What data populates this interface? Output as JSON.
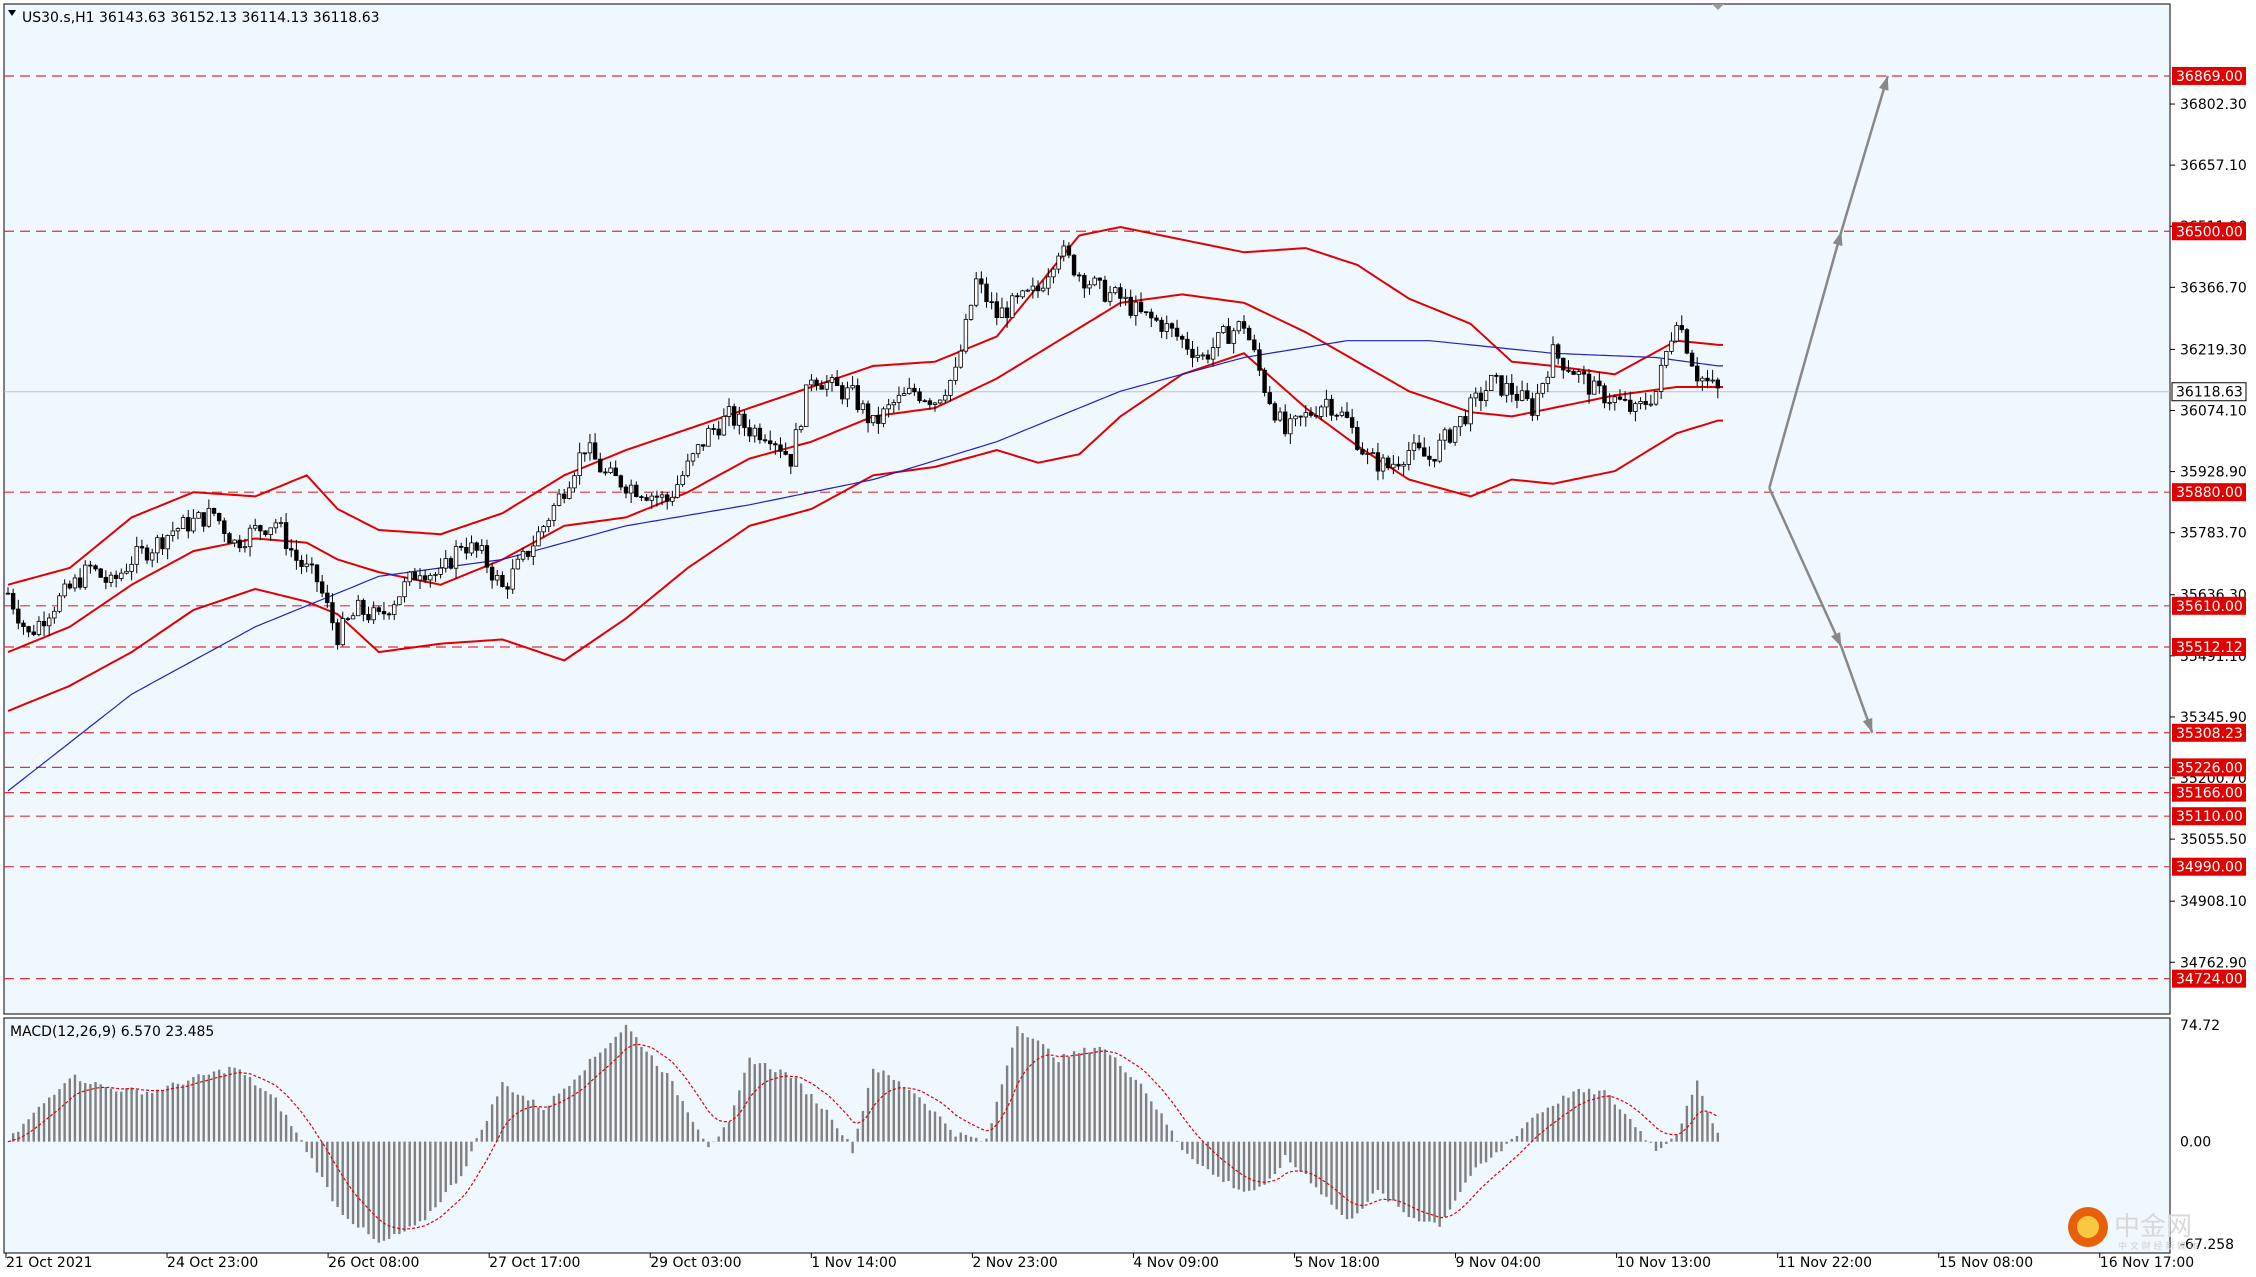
{
  "header": {
    "symbol_line": "US30.s,H1  36143.63 36152.13 36114.13 36118.63"
  },
  "macd_header": "MACD(12,26,9) 6.570 23.485",
  "watermark": {
    "brand": "中金网",
    "sub": "中 文 财 经 新 媒 体"
  },
  "colors": {
    "background": "#f0f8ff",
    "band": "#e00000",
    "ma_blue": "#2020c0",
    "level_line": "#e03030",
    "tag_red": "#e00000",
    "arrow": "#888888",
    "macd_hist": "#808080",
    "macd_signal": "#e00000"
  },
  "chart_data": {
    "type": "candlestick",
    "title": "US30.s,H1",
    "ohlc_last": {
      "open": 36143.63,
      "high": 36152.13,
      "low": 36114.13,
      "close": 36118.63
    },
    "current_price": "36118.63",
    "ylim": [
      34640,
      37040
    ],
    "y_ticks": [
      "36802.30",
      "36657.10",
      "36511.90",
      "36366.70",
      "36219.30",
      "36074.10",
      "35928.90",
      "35783.70",
      "35636.30",
      "35491.10",
      "35345.90",
      "35200.70",
      "35055.50",
      "34908.10",
      "34762.90"
    ],
    "x_ticks": [
      "21 Oct 2021",
      "24 Oct 23:00",
      "26 Oct 08:00",
      "27 Oct 17:00",
      "29 Oct 03:00",
      "1 Nov 14:00",
      "2 Nov 23:00",
      "4 Nov 09:00",
      "5 Nov 18:00",
      "9 Nov 04:00",
      "10 Nov 13:00",
      "11 Nov 22:00",
      "15 Nov 08:00",
      "16 Nov 17:00"
    ],
    "levels": [
      {
        "label": "36869.00",
        "value": 36869.0
      },
      {
        "label": "36500.00",
        "value": 36500.0
      },
      {
        "label": "35880.00",
        "value": 35880.0
      },
      {
        "label": "35610.00",
        "value": 35610.0
      },
      {
        "label": "35512.12",
        "value": 35512.12
      },
      {
        "label": "35308.23",
        "value": 35308.23
      },
      {
        "label": "35226.00",
        "value": 35226.0
      },
      {
        "label": "35166.00",
        "value": 35166.0
      },
      {
        "label": "35110.00",
        "value": 35110.0
      },
      {
        "label": "34990.00",
        "value": 34990.0
      },
      {
        "label": "34724.00",
        "value": 34724.0
      }
    ],
    "close_path": [
      [
        0,
        35640
      ],
      [
        4,
        35540
      ],
      [
        8,
        35600
      ],
      [
        12,
        35650
      ],
      [
        16,
        35700
      ],
      [
        20,
        35660
      ],
      [
        24,
        35720
      ],
      [
        28,
        35750
      ],
      [
        32,
        35790
      ],
      [
        36,
        35810
      ],
      [
        40,
        35830
      ],
      [
        44,
        35760
      ],
      [
        48,
        35790
      ],
      [
        52,
        35810
      ],
      [
        56,
        35720
      ],
      [
        60,
        35670
      ],
      [
        64,
        35540
      ],
      [
        68,
        35600
      ],
      [
        72,
        35580
      ],
      [
        76,
        35640
      ],
      [
        80,
        35700
      ],
      [
        84,
        35680
      ],
      [
        88,
        35760
      ],
      [
        92,
        35730
      ],
      [
        96,
        35650
      ],
      [
        100,
        35720
      ],
      [
        104,
        35800
      ],
      [
        108,
        35890
      ],
      [
        112,
        35990
      ],
      [
        116,
        35920
      ],
      [
        120,
        35900
      ],
      [
        124,
        35880
      ],
      [
        128,
        35860
      ],
      [
        132,
        35940
      ],
      [
        136,
        36020
      ],
      [
        140,
        36060
      ],
      [
        144,
        36030
      ],
      [
        148,
        36020
      ],
      [
        152,
        35960
      ],
      [
        156,
        36160
      ],
      [
        160,
        36130
      ],
      [
        164,
        36110
      ],
      [
        168,
        36040
      ],
      [
        172,
        36090
      ],
      [
        176,
        36120
      ],
      [
        180,
        36100
      ],
      [
        184,
        36160
      ],
      [
        188,
        36380
      ],
      [
        192,
        36300
      ],
      [
        196,
        36330
      ],
      [
        200,
        36360
      ],
      [
        204,
        36460
      ],
      [
        208,
        36400
      ],
      [
        212,
        36360
      ],
      [
        216,
        36340
      ],
      [
        220,
        36300
      ],
      [
        224,
        36280
      ],
      [
        228,
        36240
      ],
      [
        232,
        36200
      ],
      [
        236,
        36250
      ],
      [
        240,
        36280
      ],
      [
        244,
        36130
      ],
      [
        248,
        36020
      ],
      [
        252,
        36060
      ],
      [
        256,
        36100
      ],
      [
        260,
        36050
      ],
      [
        264,
        35960
      ],
      [
        268,
        35940
      ],
      [
        272,
        35980
      ],
      [
        276,
        35960
      ],
      [
        280,
        36020
      ],
      [
        284,
        36080
      ],
      [
        288,
        36140
      ],
      [
        292,
        36120
      ],
      [
        296,
        36080
      ],
      [
        300,
        36210
      ],
      [
        304,
        36170
      ],
      [
        308,
        36120
      ],
      [
        312,
        36100
      ],
      [
        316,
        36070
      ],
      [
        320,
        36120
      ],
      [
        324,
        36300
      ],
      [
        328,
        36160
      ],
      [
        332,
        36120
      ]
    ],
    "upper_band": [
      [
        0,
        35660
      ],
      [
        12,
        35700
      ],
      [
        24,
        35820
      ],
      [
        36,
        35880
      ],
      [
        48,
        35870
      ],
      [
        58,
        35920
      ],
      [
        64,
        35840
      ],
      [
        72,
        35790
      ],
      [
        84,
        35780
      ],
      [
        96,
        35830
      ],
      [
        108,
        35920
      ],
      [
        120,
        35980
      ],
      [
        132,
        36030
      ],
      [
        144,
        36080
      ],
      [
        156,
        36130
      ],
      [
        168,
        36180
      ],
      [
        180,
        36190
      ],
      [
        192,
        36250
      ],
      [
        200,
        36370
      ],
      [
        208,
        36490
      ],
      [
        216,
        36510
      ],
      [
        228,
        36480
      ],
      [
        240,
        36450
      ],
      [
        252,
        36460
      ],
      [
        262,
        36420
      ],
      [
        272,
        36340
      ],
      [
        284,
        36280
      ],
      [
        292,
        36190
      ],
      [
        300,
        36180
      ],
      [
        312,
        36160
      ],
      [
        324,
        36240
      ],
      [
        332,
        36230
      ]
    ],
    "middle_band": [
      [
        0,
        35500
      ],
      [
        12,
        35560
      ],
      [
        24,
        35660
      ],
      [
        36,
        35740
      ],
      [
        48,
        35770
      ],
      [
        58,
        35760
      ],
      [
        64,
        35720
      ],
      [
        72,
        35690
      ],
      [
        84,
        35660
      ],
      [
        96,
        35720
      ],
      [
        108,
        35800
      ],
      [
        120,
        35820
      ],
      [
        132,
        35880
      ],
      [
        144,
        35960
      ],
      [
        156,
        36000
      ],
      [
        168,
        36060
      ],
      [
        180,
        36080
      ],
      [
        192,
        36150
      ],
      [
        200,
        36210
      ],
      [
        208,
        36270
      ],
      [
        216,
        36330
      ],
      [
        228,
        36350
      ],
      [
        240,
        36330
      ],
      [
        252,
        36260
      ],
      [
        262,
        36190
      ],
      [
        272,
        36120
      ],
      [
        284,
        36070
      ],
      [
        292,
        36060
      ],
      [
        300,
        36080
      ],
      [
        312,
        36110
      ],
      [
        324,
        36130
      ],
      [
        332,
        36130
      ]
    ],
    "lower_band": [
      [
        0,
        35360
      ],
      [
        12,
        35420
      ],
      [
        24,
        35500
      ],
      [
        36,
        35600
      ],
      [
        48,
        35650
      ],
      [
        58,
        35620
      ],
      [
        64,
        35590
      ],
      [
        72,
        35500
      ],
      [
        84,
        35520
      ],
      [
        96,
        35530
      ],
      [
        108,
        35480
      ],
      [
        120,
        35580
      ],
      [
        132,
        35700
      ],
      [
        144,
        35800
      ],
      [
        156,
        35840
      ],
      [
        168,
        35920
      ],
      [
        180,
        35940
      ],
      [
        192,
        35980
      ],
      [
        200,
        35950
      ],
      [
        208,
        35970
      ],
      [
        216,
        36060
      ],
      [
        228,
        36160
      ],
      [
        240,
        36210
      ],
      [
        252,
        36080
      ],
      [
        262,
        35990
      ],
      [
        272,
        35910
      ],
      [
        284,
        35870
      ],
      [
        292,
        35910
      ],
      [
        300,
        35900
      ],
      [
        312,
        35930
      ],
      [
        324,
        36020
      ],
      [
        332,
        36050
      ]
    ],
    "ma_blue": [
      [
        0,
        35170
      ],
      [
        24,
        35400
      ],
      [
        48,
        35560
      ],
      [
        72,
        35680
      ],
      [
        96,
        35720
      ],
      [
        120,
        35800
      ],
      [
        144,
        35850
      ],
      [
        168,
        35910
      ],
      [
        192,
        36000
      ],
      [
        216,
        36120
      ],
      [
        240,
        36200
      ],
      [
        260,
        36240
      ],
      [
        276,
        36240
      ],
      [
        300,
        36210
      ],
      [
        320,
        36200
      ],
      [
        332,
        36180
      ]
    ],
    "scenario_arrows": [
      {
        "from": [
          342,
          35890
        ],
        "to": [
          356,
          36500
        ]
      },
      {
        "from": [
          356,
          36500
        ],
        "to": [
          365,
          36869
        ]
      },
      {
        "from": [
          342,
          35890
        ],
        "to": [
          356,
          35512.12
        ]
      },
      {
        "from": [
          356,
          35512.12
        ],
        "to": [
          362,
          35308.23
        ]
      }
    ],
    "macd": {
      "ylim": [
        -67.258,
        74.72
      ],
      "y_ticks": [
        "74.72",
        "0.00",
        "-67.258"
      ],
      "hist_path": [
        [
          0,
          0
        ],
        [
          6,
          20
        ],
        [
          12,
          40
        ],
        [
          20,
          32
        ],
        [
          28,
          30
        ],
        [
          36,
          38
        ],
        [
          44,
          45
        ],
        [
          52,
          25
        ],
        [
          58,
          -5
        ],
        [
          64,
          -40
        ],
        [
          72,
          -62
        ],
        [
          80,
          -50
        ],
        [
          88,
          -20
        ],
        [
          96,
          35
        ],
        [
          104,
          20
        ],
        [
          112,
          45
        ],
        [
          120,
          70
        ],
        [
          128,
          40
        ],
        [
          136,
          -2
        ],
        [
          140,
          10
        ],
        [
          144,
          50
        ],
        [
          152,
          40
        ],
        [
          160,
          15
        ],
        [
          164,
          -5
        ],
        [
          168,
          45
        ],
        [
          176,
          30
        ],
        [
          184,
          5
        ],
        [
          190,
          0
        ],
        [
          196,
          70
        ],
        [
          204,
          50
        ],
        [
          212,
          58
        ],
        [
          220,
          35
        ],
        [
          228,
          -4
        ],
        [
          234,
          -20
        ],
        [
          240,
          -30
        ],
        [
          244,
          -28
        ],
        [
          248,
          -10
        ],
        [
          252,
          -20
        ],
        [
          260,
          -48
        ],
        [
          266,
          -30
        ],
        [
          272,
          -45
        ],
        [
          278,
          -50
        ],
        [
          284,
          -20
        ],
        [
          290,
          -5
        ],
        [
          296,
          15
        ],
        [
          304,
          30
        ],
        [
          310,
          30
        ],
        [
          316,
          10
        ],
        [
          320,
          -5
        ],
        [
          324,
          5
        ],
        [
          328,
          35
        ],
        [
          332,
          5
        ]
      ]
    }
  }
}
